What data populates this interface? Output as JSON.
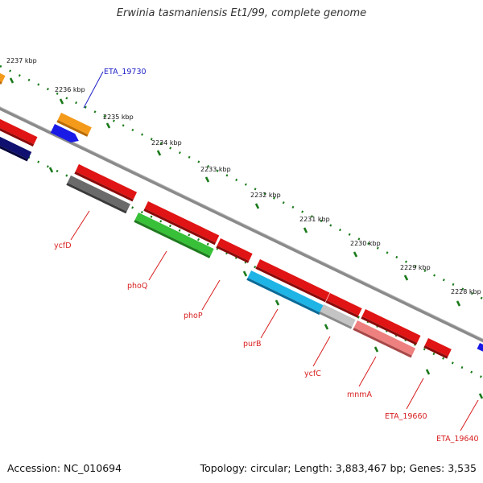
{
  "title": "Erwinia tasmaniensis Et1/99, complete genome",
  "footer": {
    "accession": "Accession: NC_010694",
    "summary": "Topology: circular; Length: 3,883,467 bp; Genes: 3,535"
  },
  "ticks": [
    "2237 kbp",
    "2236 kbp",
    "2235 kbp",
    "2234 kbp",
    "2233 kbp",
    "2232 kbp",
    "2231 kbp",
    "2230 kbp",
    "2229 kbp",
    "2228 kbp"
  ],
  "gene_labels": [
    "ETA_19730",
    "ycfD",
    "phoQ",
    "phoP",
    "purB",
    "ycfC",
    "mnmA",
    "ETA_19660",
    "ETA_19640"
  ],
  "colors": {
    "red": "#e01414",
    "orange": "#f49a1a",
    "blue": "#1a1ae6",
    "navy": "#101070",
    "gray": "#6a6a6a",
    "green": "#38c038",
    "cyan": "#1eb4e6",
    "lightgray": "#c4c4c4",
    "pink": "#ee8080",
    "backbone": "#8a8a8a",
    "tick_green": "#1a7a1a",
    "label_red": "#d81e1e",
    "label_blue": "#1f1fc8"
  }
}
